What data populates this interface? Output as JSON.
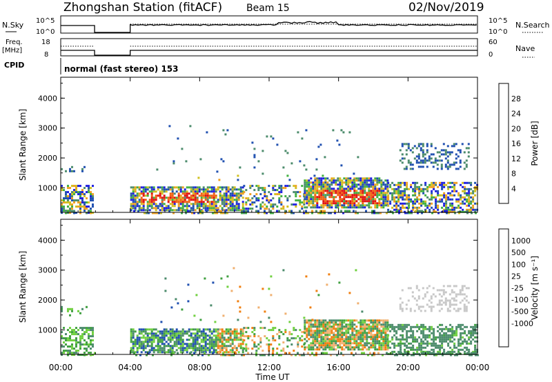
{
  "header": {
    "title": "Zhongshan Station (fitACF)",
    "beam": "Beam 15",
    "date": "02/Nov/2019"
  },
  "panels": {
    "nsky_label": "N.Sky",
    "nsky_ticks": [
      "10^5",
      "10^0"
    ],
    "nsearch_label": "N.Search",
    "nsearch_ticks": [
      "10^5",
      "10^0"
    ],
    "freq_label_1": "Freq.",
    "freq_label_2": "[MHz]",
    "freq_ticks": [
      "18",
      "8"
    ],
    "nave_label": "Nave",
    "nave_ticks": [
      "60",
      "0"
    ],
    "cpid_label": "CPID",
    "cpid_text": "normal (fast stereo) 153"
  },
  "colors": {
    "power": [
      "#1f1fe0",
      "#2050b0",
      "#4c8c6c",
      "#40b040",
      "#d0c020",
      "#f0a020",
      "#f06010",
      "#e01010"
    ],
    "velocity": [
      "#e01010",
      "#f04010",
      "#f07f10",
      "#f0b070",
      "#c8c8c8",
      "#70d040",
      "#40a040",
      "#4c8c6c",
      "#2050b0",
      "#1f1fe0"
    ]
  },
  "chart_data": [
    {
      "type": "heatmap",
      "name": "power",
      "ylabel": "Slant Range [km]",
      "xlabel": "",
      "x_ticks": [
        "00:00",
        "04:00",
        "08:00",
        "12:00",
        "16:00",
        "20:00",
        "00:00"
      ],
      "y_ticks": [
        "1000",
        "2000",
        "3000",
        "4000"
      ],
      "y_range": [
        180,
        4700
      ],
      "x_range_hours": [
        0,
        24
      ],
      "colorbar_label": "Power [dB]",
      "colorbar_ticks": [
        "4",
        "8",
        "12",
        "16",
        "20",
        "24",
        "28"
      ],
      "colorbar_range": [
        0,
        32
      ]
    },
    {
      "type": "heatmap",
      "name": "velocity",
      "ylabel": "Slant Range [km]",
      "xlabel": "Time UT",
      "x_ticks": [
        "00:00",
        "04:00",
        "08:00",
        "12:00",
        "16:00",
        "20:00",
        "00:00"
      ],
      "y_ticks": [
        "1000",
        "2000",
        "3000",
        "4000"
      ],
      "y_range": [
        180,
        4700
      ],
      "x_range_hours": [
        0,
        24
      ],
      "colorbar_label": "Velocity [m s⁻¹]",
      "colorbar_ticks": [
        "1000",
        "500",
        "100",
        "25",
        "-25",
        "-100",
        "-500",
        "-1000"
      ]
    }
  ]
}
